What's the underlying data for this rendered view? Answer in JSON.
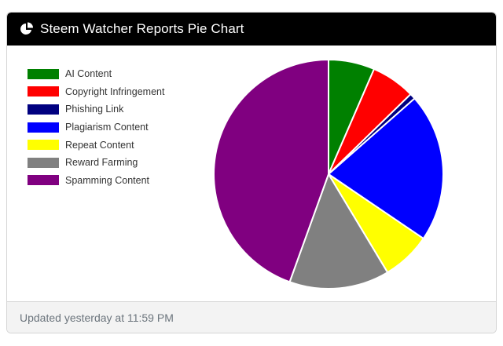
{
  "header": {
    "title": "Steem Watcher Reports Pie Chart",
    "icon": "pie-chart-icon"
  },
  "footer": {
    "updated_text": "Updated yesterday at 11:59 PM"
  },
  "chart_data": {
    "type": "pie",
    "categories": [
      "AI Content",
      "Copyright Infringement",
      "Phishing Link",
      "Plagiarism Content",
      "Repeat Content",
      "Reward Farming",
      "Spamming Content"
    ],
    "values": [
      6.5,
      6.2,
      0.8,
      21.0,
      6.9,
      14.1,
      44.5
    ],
    "colors": [
      "#008000",
      "#ff0000",
      "#000080",
      "#0000ff",
      "#ffff00",
      "#808080",
      "#800080"
    ],
    "legend_position": "top-left"
  }
}
